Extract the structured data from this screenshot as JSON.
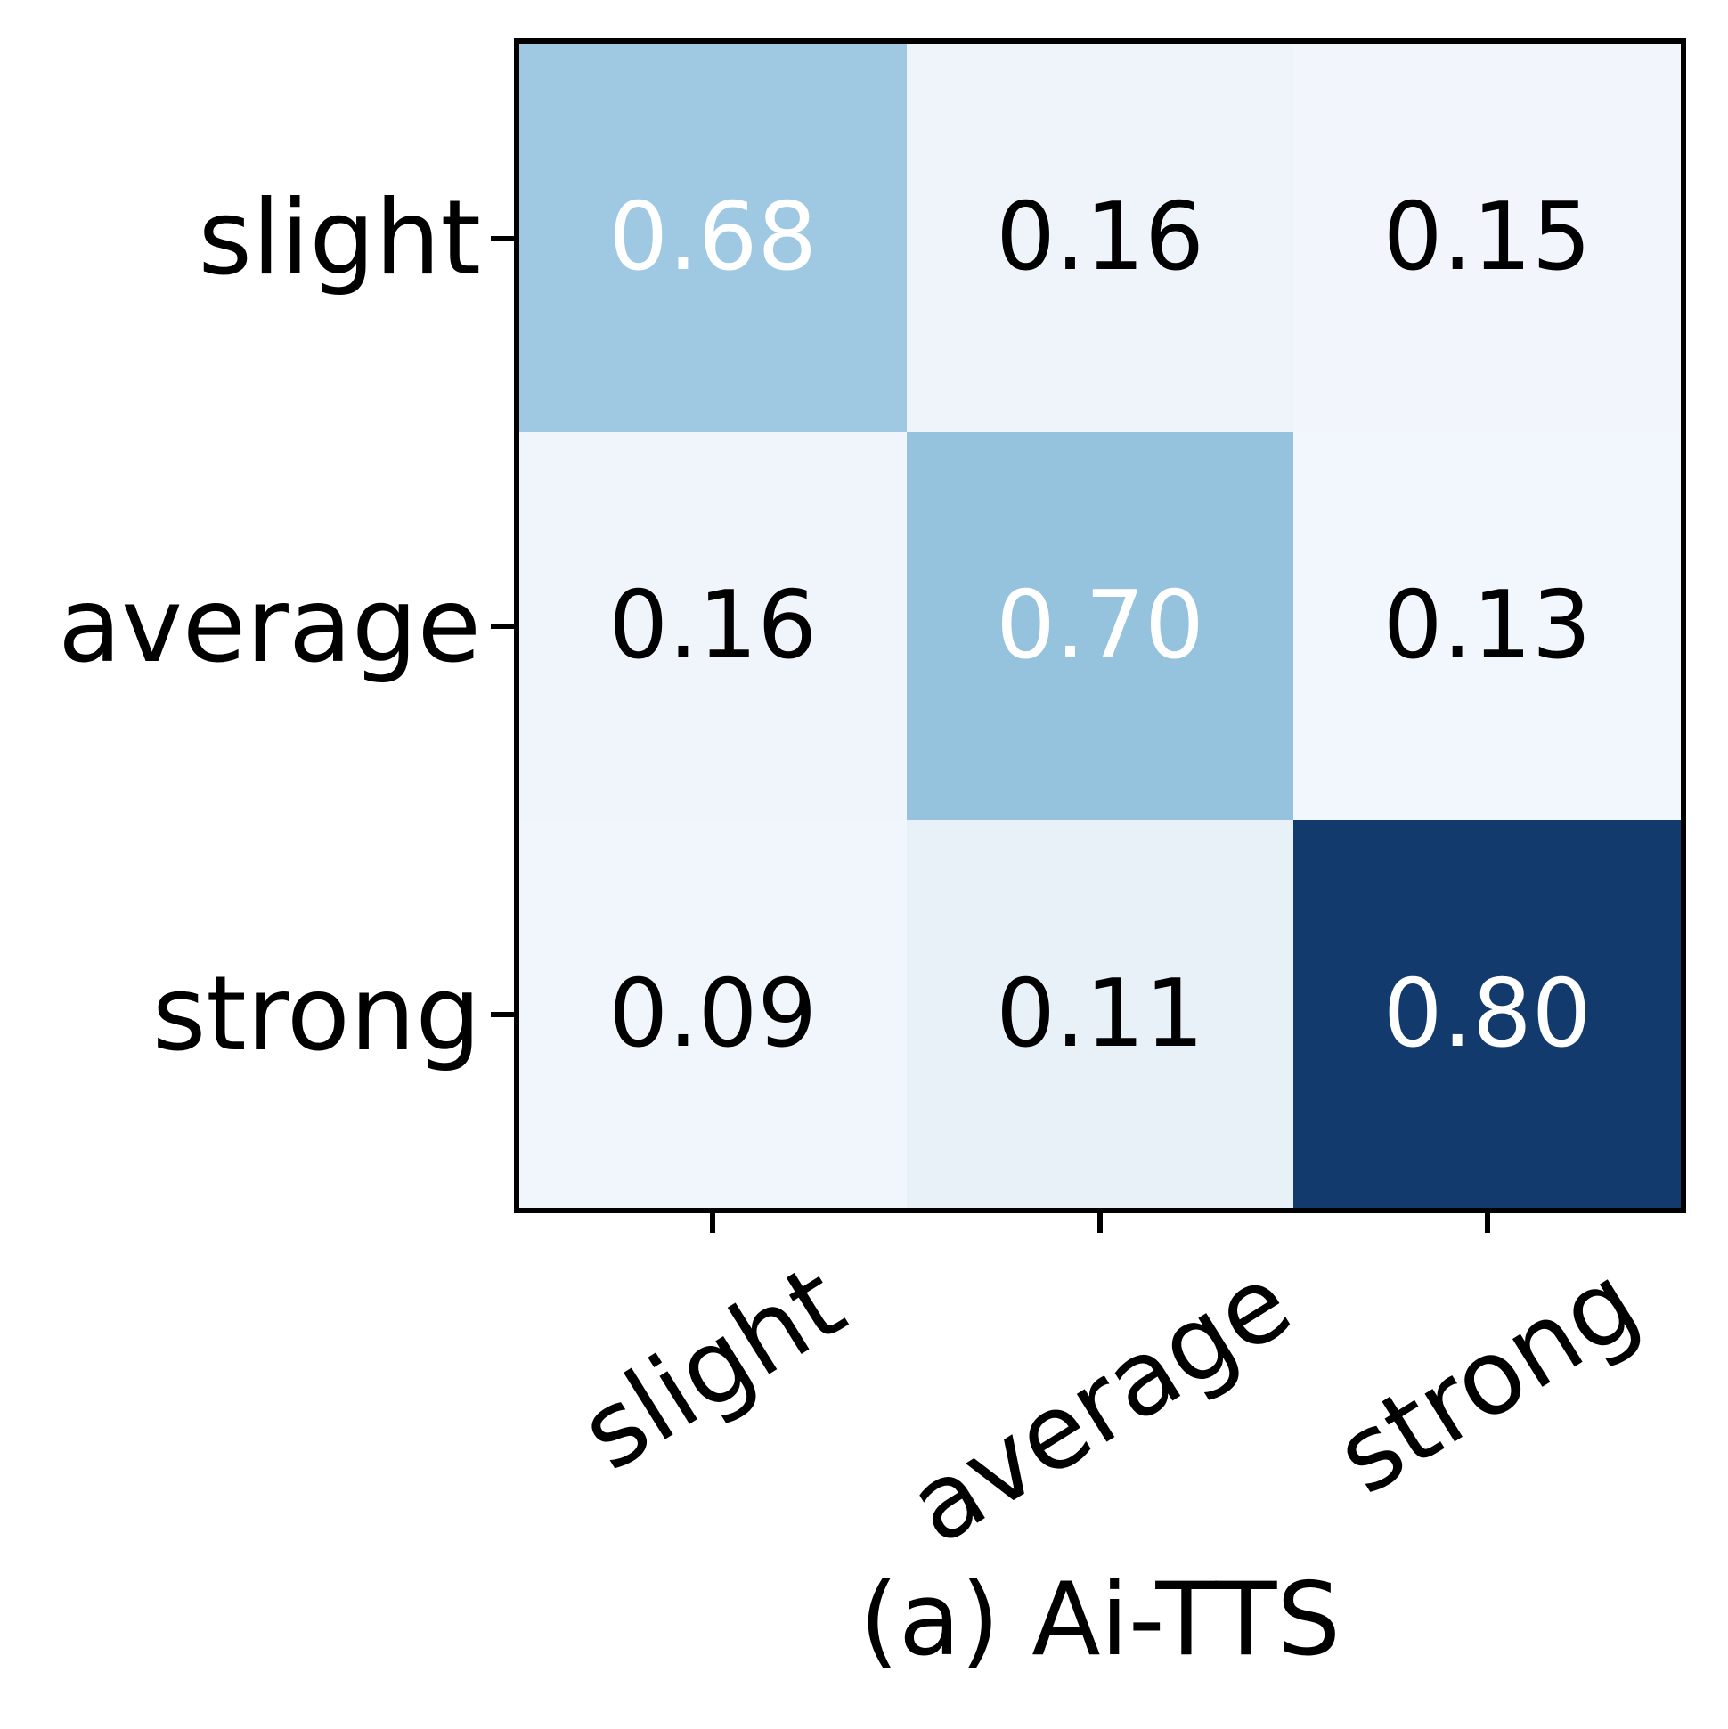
{
  "figure": {
    "background_color": "#ffffff",
    "border_color": "#000000",
    "caption": "(a) Ai-TTS"
  },
  "chart_data": {
    "type": "heatmap",
    "title": "(a) Ai-TTS",
    "colormap": "Blues",
    "grid": false,
    "legend": "none",
    "x_categories": [
      "slight",
      "average",
      "strong"
    ],
    "y_categories": [
      "slight",
      "average",
      "strong"
    ],
    "x_tick_rotation_deg": 32,
    "series": [
      {
        "name": "slight",
        "values": [
          0.68,
          0.16,
          0.15
        ]
      },
      {
        "name": "average",
        "values": [
          0.16,
          0.7,
          0.13
        ]
      },
      {
        "name": "strong",
        "values": [
          0.09,
          0.11,
          0.8
        ]
      }
    ],
    "cell_labels": [
      [
        "0.68",
        "0.16",
        "0.15"
      ],
      [
        "0.16",
        "0.70",
        "0.13"
      ],
      [
        "0.09",
        "0.11",
        "0.80"
      ]
    ],
    "cell_colors": [
      [
        "#9fc9e2",
        "#eef4fa",
        "#f2f6fc"
      ],
      [
        "#f0f5fb",
        "#95c3de",
        "#f2f7fd"
      ],
      [
        "#f1f6fc",
        "#e9f1f8",
        "#123a6c"
      ]
    ],
    "cell_text_colors": [
      [
        "#ffffff",
        "#000000",
        "#000000"
      ],
      [
        "#000000",
        "#ffffff",
        "#000000"
      ],
      [
        "#000000",
        "#000000",
        "#ffffff"
      ]
    ]
  }
}
